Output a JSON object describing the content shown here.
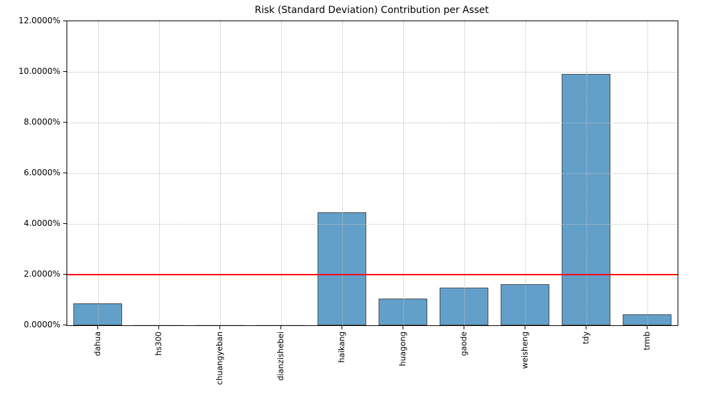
{
  "figure": {
    "background": "#ffffff"
  },
  "chart_data": {
    "type": "bar",
    "title": "Risk (Standard Deviation) Contribution per Asset",
    "categories": [
      "dahua",
      "hs300",
      "chuangyeban",
      "dianzishebei",
      "haikang",
      "huagong",
      "gaode",
      "weisheng",
      "tdy",
      "trmb"
    ],
    "values": [
      0.87,
      0.01,
      0.01,
      0.01,
      4.46,
      1.05,
      1.49,
      1.62,
      9.92,
      0.42
    ],
    "unit": "%",
    "xlabel": "",
    "ylabel": "",
    "ylim": [
      0,
      12
    ],
    "ytick_values": [
      0,
      2,
      4,
      6,
      8,
      10,
      12
    ],
    "ytick_labels": [
      "0.0000%",
      "2.0000%",
      "4.0000%",
      "6.0000%",
      "8.0000%",
      "10.0000%",
      "12.0000%"
    ],
    "grid": "dotted, both axes",
    "legend_position": "none",
    "threshold_line": {
      "value": 2.0,
      "color": "#ff0000"
    }
  },
  "style": {
    "bar_fill": "#62a0ca",
    "bar_edge": "#4d4d4d",
    "grid_color": "#bebebe",
    "spine_color": "#000000",
    "threshold_color": "#ff0000",
    "text_color": "#000000"
  }
}
